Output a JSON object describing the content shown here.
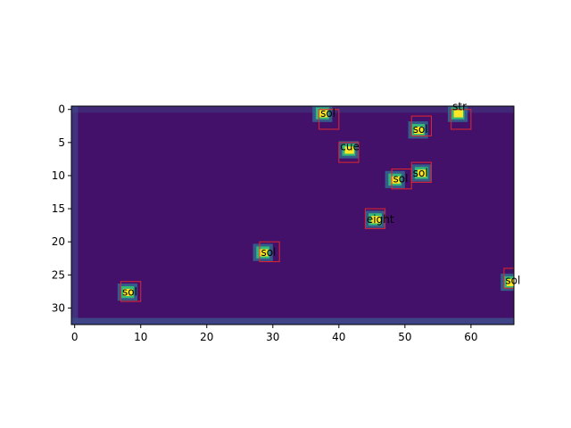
{
  "chart_data": {
    "type": "heatmap",
    "title": "",
    "xlabel": "",
    "ylabel": "",
    "xlim": [
      -0.5,
      66.5
    ],
    "ylim": [
      32.5,
      -0.5
    ],
    "x_ticks": [
      0,
      10,
      20,
      30,
      40,
      50,
      60
    ],
    "y_ticks": [
      0,
      5,
      10,
      15,
      20,
      25,
      30
    ],
    "colormap": "viridis",
    "grid": false,
    "colors": {
      "background": "#44116a",
      "box": "#e3262d",
      "hot": "#fde725",
      "warm": "#35b779",
      "mid": "#31688e",
      "floor": "#3e4a89"
    },
    "hotspots": [
      {
        "x": 37.5,
        "y": 0.5
      },
      {
        "x": 52,
        "y": 3
      },
      {
        "x": 58,
        "y": 0.5
      },
      {
        "x": 41.5,
        "y": 6
      },
      {
        "x": 48.5,
        "y": 10.5
      },
      {
        "x": 52.5,
        "y": 9.5
      },
      {
        "x": 45.5,
        "y": 16.5
      },
      {
        "x": 28.5,
        "y": 21.5
      },
      {
        "x": 8,
        "y": 27.5
      },
      {
        "x": 66,
        "y": 26
      }
    ],
    "detections": [
      {
        "label": "sol",
        "x0": 37,
        "y0": 0,
        "x1": 40,
        "y1": 3,
        "tx": 37.2,
        "ty": 0.6
      },
      {
        "label": "sol",
        "x0": 51,
        "y0": 1,
        "x1": 54,
        "y1": 4,
        "tx": 51.2,
        "ty": 3.0
      },
      {
        "label": "str",
        "x0": 57,
        "y0": 0,
        "x1": 60,
        "y1": 3,
        "tx": 57.2,
        "ty": -0.4
      },
      {
        "label": "cue",
        "x0": 40,
        "y0": 5,
        "x1": 43,
        "y1": 8,
        "tx": 40.2,
        "ty": 5.6
      },
      {
        "label": "sol",
        "x0": 48,
        "y0": 9,
        "x1": 51,
        "y1": 12,
        "tx": 48.2,
        "ty": 10.5
      },
      {
        "label": "sol",
        "x0": 51,
        "y0": 8,
        "x1": 54,
        "y1": 11,
        "tx": 51.2,
        "ty": 9.6
      },
      {
        "label": "eight",
        "x0": 44,
        "y0": 15,
        "x1": 47,
        "y1": 18,
        "tx": 44.2,
        "ty": 16.6
      },
      {
        "label": "sol",
        "x0": 28,
        "y0": 20,
        "x1": 31,
        "y1": 23,
        "tx": 28.2,
        "ty": 21.6
      },
      {
        "label": "sol",
        "x0": 7,
        "y0": 26,
        "x1": 10,
        "y1": 29,
        "tx": 7.2,
        "ty": 27.6
      },
      {
        "label": "sol",
        "x0": 65,
        "y0": 24,
        "x1": 68,
        "y1": 27,
        "tx": 65.2,
        "ty": 25.8
      }
    ]
  }
}
